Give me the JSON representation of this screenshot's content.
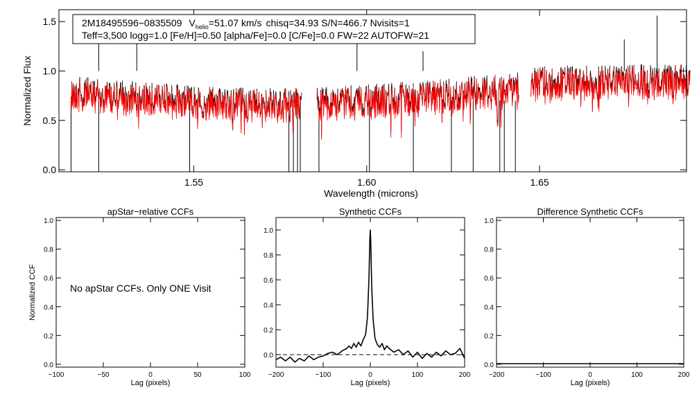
{
  "chart_data": [
    {
      "type": "line",
      "id": "spectrum",
      "xlabel": "Wavelength (microns)",
      "ylabel": "Normalized Flux",
      "xlim": [
        1.511,
        1.6925
      ],
      "ylim": [
        -0.02,
        1.62
      ],
      "x_ticks": [
        "1.55",
        "1.60",
        "1.65"
      ],
      "x_tick_values": [
        1.55,
        1.6,
        1.65
      ],
      "y_ticks": [
        "0.0",
        "0.5",
        "1.0",
        "1.5"
      ],
      "y_tick_values": [
        0.0,
        0.5,
        1.0,
        1.5
      ],
      "info_line1": {
        "star": "2M18495596−0835509",
        "vhelio_prefix": "V",
        "vhelio_sub": "helio",
        "vhelio_value": "=51.07 km/s",
        "rest": "chisq=34.93  S/N=466.7  Nvisits=1"
      },
      "info_line2": "Teff=3,500 logg=1.0 [Fe/H]=0.50 [alpha/Fe]=0.0 [C/Fe]=0.0 FW=22 AUTOFW=21",
      "chips": [
        [
          1.5145,
          1.5812
        ],
        [
          1.5855,
          1.644
        ],
        [
          1.6475,
          1.6935
        ]
      ],
      "series": [
        {
          "name": "observed",
          "color": "#000000",
          "mean_flux": 0.88
        },
        {
          "name": "synthetic",
          "color": "#ff0000",
          "mean_flux": 0.86
        }
      ]
    },
    {
      "type": "line",
      "id": "apstar-ccf",
      "title": "apStar−relative CCFs",
      "xlabel": "Lag (pixels)",
      "ylabel": "Normalized CCF",
      "xlim": [
        -100,
        100
      ],
      "ylim": [
        -0.02,
        1.02
      ],
      "x_ticks": [
        "−100",
        "−50",
        "0",
        "50",
        "100"
      ],
      "x_tick_values": [
        -100,
        -50,
        0,
        50,
        100
      ],
      "y_ticks": [
        "0.0",
        "0.2",
        "0.4",
        "0.6",
        "0.8",
        "1.0"
      ],
      "y_tick_values": [
        0.0,
        0.2,
        0.4,
        0.6,
        0.8,
        1.0
      ],
      "annotation": "No apStar CCFs.  Only ONE Visit"
    },
    {
      "type": "line",
      "id": "synthetic-ccf",
      "title": "Synthetic CCFs",
      "xlabel": "Lag (pixels)",
      "xlim": [
        -200,
        200
      ],
      "ylim": [
        -0.1,
        1.1
      ],
      "x_ticks": [
        "−200",
        "−100",
        "0",
        "100",
        "200"
      ],
      "x_tick_values": [
        -200,
        -100,
        0,
        100,
        200
      ],
      "y_ticks": [
        "0.0",
        "0.2",
        "0.4",
        "0.6",
        "0.8",
        "1.0"
      ],
      "y_tick_values": [
        0.0,
        0.2,
        0.4,
        0.6,
        0.8,
        1.0
      ],
      "peak_lag": 0,
      "peak_value": 1.0,
      "baseline": 0.0,
      "series": [
        {
          "name": "ccf",
          "color": "#000000",
          "x": [
            -200,
            -190,
            -180,
            -170,
            -160,
            -150,
            -140,
            -130,
            -120,
            -110,
            -100,
            -90,
            -80,
            -70,
            -60,
            -50,
            -45,
            -40,
            -35,
            -30,
            -25,
            -20,
            -15,
            -10,
            -6,
            -3,
            -1,
            0,
            1,
            3,
            6,
            10,
            15,
            20,
            25,
            30,
            35,
            40,
            50,
            60,
            70,
            80,
            90,
            100,
            110,
            120,
            130,
            140,
            150,
            160,
            170,
            180,
            190,
            200
          ],
          "y": [
            -0.04,
            -0.02,
            -0.05,
            -0.02,
            -0.06,
            -0.03,
            -0.05,
            -0.01,
            -0.04,
            -0.02,
            -0.01,
            0.01,
            0.02,
            0.0,
            0.03,
            0.05,
            0.07,
            0.05,
            0.09,
            0.06,
            0.1,
            0.07,
            0.12,
            0.16,
            0.3,
            0.6,
            0.92,
            1.0,
            0.9,
            0.55,
            0.28,
            0.13,
            0.08,
            0.06,
            0.09,
            0.04,
            0.07,
            0.05,
            0.02,
            0.04,
            0.0,
            0.03,
            -0.02,
            0.02,
            -0.03,
            0.01,
            -0.02,
            0.02,
            -0.01,
            0.03,
            0.0,
            0.01,
            0.05,
            -0.03
          ]
        }
      ]
    },
    {
      "type": "line",
      "id": "difference-ccf",
      "title": "Difference Synthetic CCFs",
      "xlabel": "Lag (pixels)",
      "xlim": [
        -200,
        200
      ],
      "ylim": [
        -0.02,
        1.02
      ],
      "x_ticks": [
        "−200",
        "−100",
        "0",
        "100",
        "200"
      ],
      "x_tick_values": [
        -200,
        -100,
        0,
        100,
        200
      ],
      "y_ticks": [
        "0.0",
        "0.2",
        "0.4",
        "0.6",
        "0.8",
        "1.0"
      ],
      "y_tick_values": [
        0.0,
        0.2,
        0.4,
        0.6,
        0.8,
        1.0
      ]
    }
  ]
}
